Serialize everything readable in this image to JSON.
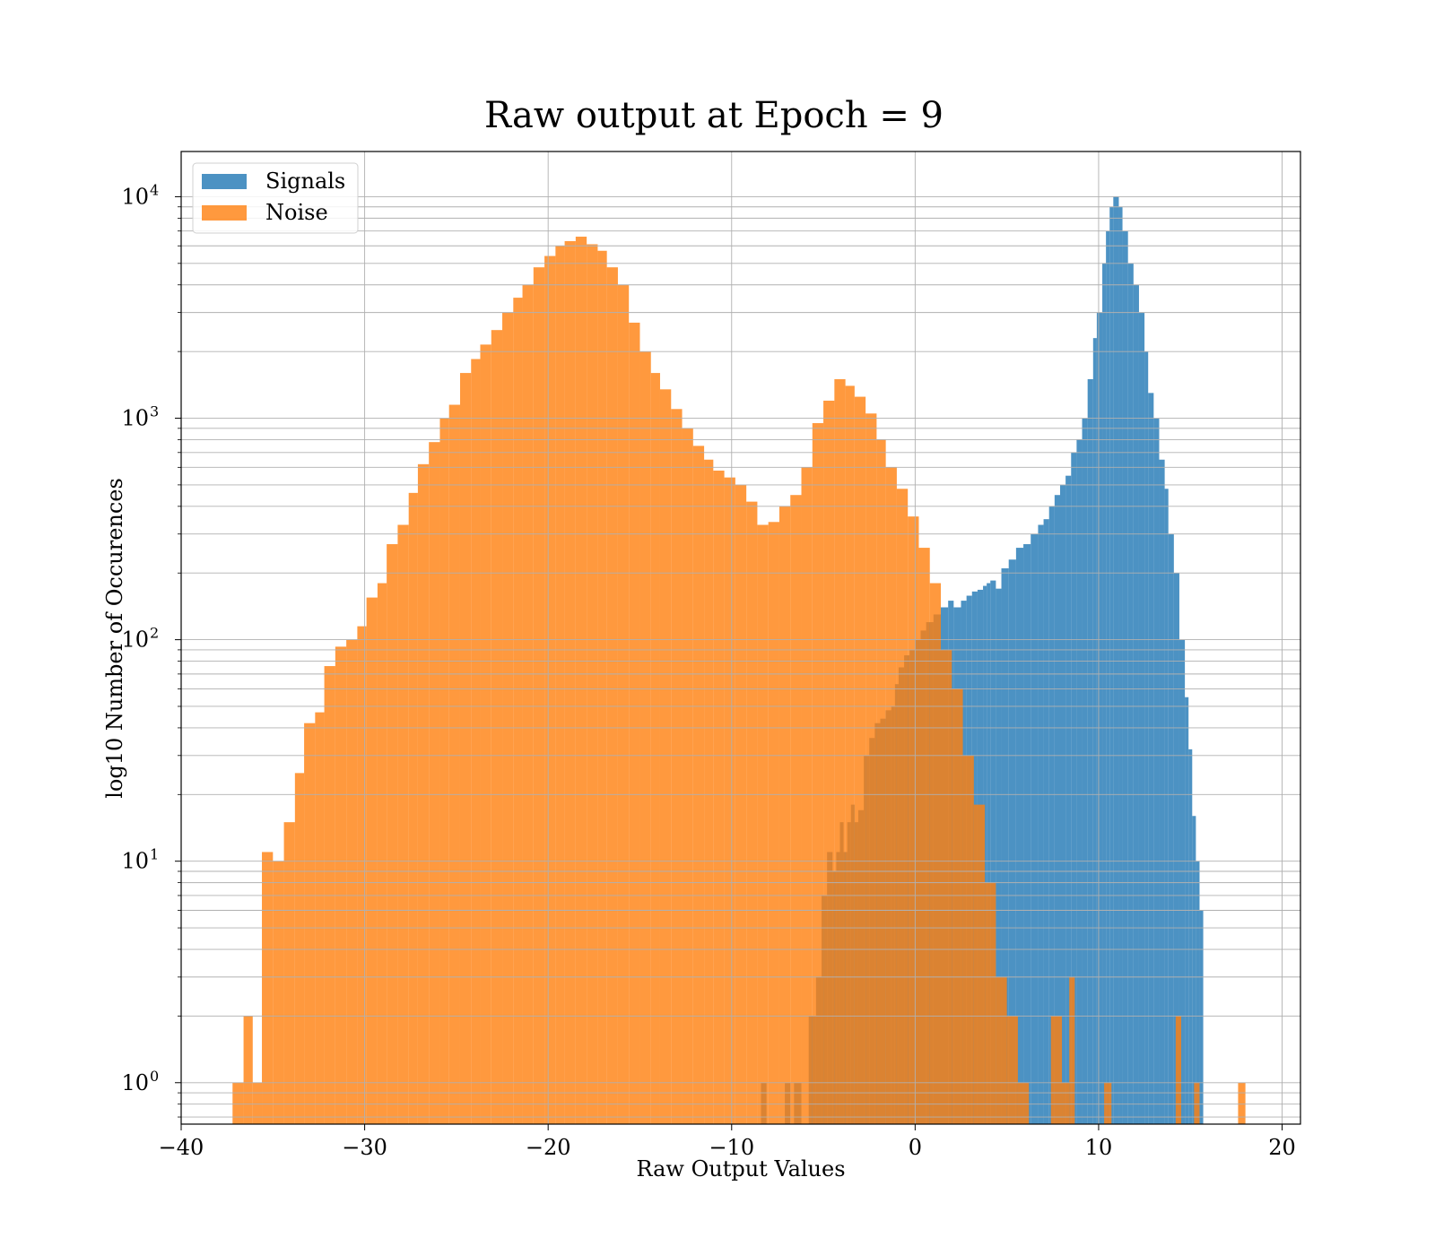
{
  "chart_data": {
    "type": "bar",
    "title": "Raw output at Epoch = 9",
    "xlabel": "Raw Output Values",
    "ylabel": "log10 Number of Occurences",
    "yscale": "log",
    "xlim": [
      -40,
      21
    ],
    "ylim": [
      0.65,
      16000
    ],
    "xticks": [
      -40,
      -30,
      -20,
      -10,
      0,
      10,
      20
    ],
    "xtick_labels": [
      "−40",
      "−30",
      "−20",
      "−10",
      "0",
      "10",
      "20"
    ],
    "ytick_labels": [
      {
        "base": "10",
        "exp": "0",
        "value": 1
      },
      {
        "base": "10",
        "exp": "1",
        "value": 10
      },
      {
        "base": "10",
        "exp": "2",
        "value": 100
      },
      {
        "base": "10",
        "exp": "3",
        "value": 1000
      },
      {
        "base": "10",
        "exp": "4",
        "value": 10000
      }
    ],
    "grid": true,
    "legend": "top-left",
    "series": [
      {
        "name": "Signals",
        "color": "#1f77b4",
        "opacity": 0.8,
        "bins": [
          [
            -8.4,
            -8.1,
            1
          ],
          [
            -7.1,
            -6.8,
            1
          ],
          [
            -6.6,
            -6.2,
            1
          ],
          [
            -5.8,
            -5.4,
            2
          ],
          [
            -5.4,
            -5.1,
            3
          ],
          [
            -5.1,
            -4.8,
            7
          ],
          [
            -4.8,
            -4.5,
            11
          ],
          [
            -4.5,
            -4.3,
            9
          ],
          [
            -4.3,
            -4.1,
            11
          ],
          [
            -4.1,
            -3.9,
            15
          ],
          [
            -3.9,
            -3.7,
            11
          ],
          [
            -3.7,
            -3.5,
            15
          ],
          [
            -3.5,
            -3.3,
            18
          ],
          [
            -3.3,
            -3.1,
            15
          ],
          [
            -3.1,
            -2.8,
            17
          ],
          [
            -2.8,
            -2.5,
            30
          ],
          [
            -2.5,
            -2.2,
            36
          ],
          [
            -2.2,
            -1.9,
            42
          ],
          [
            -1.9,
            -1.6,
            44
          ],
          [
            -1.6,
            -1.3,
            48
          ],
          [
            -1.3,
            -1.1,
            50
          ],
          [
            -1.1,
            -0.9,
            63
          ],
          [
            -0.9,
            -0.6,
            75
          ],
          [
            -0.6,
            -0.3,
            85
          ],
          [
            -0.3,
            0,
            90
          ],
          [
            0,
            0.3,
            100
          ],
          [
            0.3,
            0.6,
            110
          ],
          [
            0.6,
            1.0,
            120
          ],
          [
            1.0,
            1.4,
            130
          ],
          [
            1.4,
            1.8,
            140
          ],
          [
            1.8,
            2.1,
            150
          ],
          [
            2.1,
            2.5,
            140
          ],
          [
            2.5,
            2.8,
            150
          ],
          [
            2.8,
            3.1,
            158
          ],
          [
            3.1,
            3.4,
            165
          ],
          [
            3.4,
            3.7,
            168
          ],
          [
            3.7,
            3.9,
            175
          ],
          [
            3.9,
            4.1,
            180
          ],
          [
            4.1,
            4.4,
            185
          ],
          [
            4.4,
            4.7,
            170
          ],
          [
            4.7,
            5.1,
            210
          ],
          [
            5.1,
            5.5,
            230
          ],
          [
            5.5,
            5.9,
            260
          ],
          [
            5.9,
            6.3,
            270
          ],
          [
            6.3,
            6.7,
            300
          ],
          [
            6.7,
            7.0,
            330
          ],
          [
            7.0,
            7.3,
            350
          ],
          [
            7.3,
            7.6,
            400
          ],
          [
            7.6,
            7.9,
            450
          ],
          [
            7.9,
            8.2,
            500
          ],
          [
            8.2,
            8.5,
            550
          ],
          [
            8.5,
            8.8,
            700
          ],
          [
            8.8,
            9.1,
            800
          ],
          [
            9.1,
            9.4,
            1000
          ],
          [
            9.4,
            9.7,
            1500
          ],
          [
            9.7,
            9.9,
            2300
          ],
          [
            9.9,
            10.2,
            3000
          ],
          [
            10.2,
            10.4,
            5000
          ],
          [
            10.4,
            10.6,
            7000
          ],
          [
            10.6,
            10.8,
            9000
          ],
          [
            10.8,
            11.1,
            10000
          ],
          [
            11.1,
            11.3,
            9000
          ],
          [
            11.3,
            11.6,
            7000
          ],
          [
            11.6,
            11.9,
            5000
          ],
          [
            11.9,
            12.2,
            4000
          ],
          [
            12.2,
            12.5,
            3000
          ],
          [
            12.5,
            12.7,
            2000
          ],
          [
            12.7,
            13.0,
            1300
          ],
          [
            13.0,
            13.3,
            1000
          ],
          [
            13.3,
            13.6,
            650
          ],
          [
            13.6,
            13.8,
            480
          ],
          [
            13.8,
            14.1,
            300
          ],
          [
            14.1,
            14.4,
            200
          ],
          [
            14.4,
            14.7,
            100
          ],
          [
            14.7,
            14.9,
            55
          ],
          [
            14.9,
            15.1,
            32
          ],
          [
            15.1,
            15.3,
            16
          ],
          [
            15.3,
            15.5,
            10
          ],
          [
            15.5,
            15.7,
            6
          ]
        ]
      },
      {
        "name": "Noise",
        "color": "#ff7f0e",
        "opacity": 0.8,
        "bins": [
          [
            -37.2,
            -36.6,
            1
          ],
          [
            -36.6,
            -36.1,
            2
          ],
          [
            -36.1,
            -35.6,
            1
          ],
          [
            -35.6,
            -35.0,
            11
          ],
          [
            -35.0,
            -34.4,
            10
          ],
          [
            -34.4,
            -33.8,
            15
          ],
          [
            -33.8,
            -33.3,
            25
          ],
          [
            -33.3,
            -32.7,
            42
          ],
          [
            -32.7,
            -32.2,
            47
          ],
          [
            -32.2,
            -31.6,
            76
          ],
          [
            -31.6,
            -31.0,
            93
          ],
          [
            -31.0,
            -30.4,
            100
          ],
          [
            -30.4,
            -29.9,
            115
          ],
          [
            -29.9,
            -29.3,
            155
          ],
          [
            -29.3,
            -28.8,
            180
          ],
          [
            -28.8,
            -28.2,
            270
          ],
          [
            -28.2,
            -27.6,
            330
          ],
          [
            -27.6,
            -27.1,
            460
          ],
          [
            -27.1,
            -26.5,
            620
          ],
          [
            -26.5,
            -25.9,
            780
          ],
          [
            -25.9,
            -25.4,
            1000
          ],
          [
            -25.4,
            -24.8,
            1150
          ],
          [
            -24.8,
            -24.2,
            1600
          ],
          [
            -24.2,
            -23.7,
            1850
          ],
          [
            -23.7,
            -23.1,
            2150
          ],
          [
            -23.1,
            -22.5,
            2500
          ],
          [
            -22.5,
            -21.9,
            3000
          ],
          [
            -21.9,
            -21.4,
            3500
          ],
          [
            -21.4,
            -20.8,
            4000
          ],
          [
            -20.8,
            -20.2,
            4800
          ],
          [
            -20.2,
            -19.6,
            5400
          ],
          [
            -19.6,
            -19.1,
            6000
          ],
          [
            -19.1,
            -18.5,
            6300
          ],
          [
            -18.5,
            -17.9,
            6600
          ],
          [
            -17.9,
            -17.3,
            6100
          ],
          [
            -17.3,
            -16.8,
            5700
          ],
          [
            -16.8,
            -16.2,
            4800
          ],
          [
            -16.2,
            -15.6,
            4000
          ],
          [
            -15.6,
            -15.0,
            2700
          ],
          [
            -15.0,
            -14.4,
            2000
          ],
          [
            -14.4,
            -13.9,
            1600
          ],
          [
            -13.9,
            -13.3,
            1350
          ],
          [
            -13.3,
            -12.7,
            1100
          ],
          [
            -12.7,
            -12.1,
            900
          ],
          [
            -12.1,
            -11.5,
            750
          ],
          [
            -11.5,
            -11.0,
            650
          ],
          [
            -11.0,
            -10.4,
            580
          ],
          [
            -10.4,
            -9.8,
            540
          ],
          [
            -9.8,
            -9.2,
            500
          ],
          [
            -9.2,
            -8.6,
            420
          ],
          [
            -8.6,
            -8.0,
            330
          ],
          [
            -8.0,
            -7.4,
            340
          ],
          [
            -7.4,
            -6.8,
            400
          ],
          [
            -6.8,
            -6.2,
            450
          ],
          [
            -6.2,
            -5.6,
            600
          ],
          [
            -5.6,
            -5.0,
            950
          ],
          [
            -5.0,
            -4.4,
            1200
          ],
          [
            -4.4,
            -3.8,
            1500
          ],
          [
            -3.8,
            -3.3,
            1400
          ],
          [
            -3.3,
            -2.7,
            1250
          ],
          [
            -2.7,
            -2.1,
            1050
          ],
          [
            -2.1,
            -1.6,
            800
          ],
          [
            -1.6,
            -1.0,
            600
          ],
          [
            -1.0,
            -0.4,
            480
          ],
          [
            -0.4,
            0.2,
            360
          ],
          [
            0.2,
            0.8,
            260
          ],
          [
            0.8,
            1.4,
            180
          ],
          [
            1.4,
            2.0,
            90
          ],
          [
            2.0,
            2.6,
            60
          ],
          [
            2.6,
            3.2,
            30
          ],
          [
            3.2,
            3.8,
            18
          ],
          [
            3.8,
            4.4,
            8
          ],
          [
            4.4,
            5.0,
            3
          ],
          [
            5.0,
            5.6,
            2
          ],
          [
            5.6,
            6.2,
            1
          ],
          [
            6.2,
            6.8,
            0
          ],
          [
            6.8,
            7.4,
            0
          ],
          [
            7.4,
            8.0,
            2
          ],
          [
            8.0,
            8.4,
            1
          ],
          [
            8.4,
            8.7,
            3
          ],
          [
            10.3,
            10.7,
            1
          ],
          [
            14.2,
            14.5,
            2
          ],
          [
            15.2,
            15.5,
            1
          ],
          [
            17.6,
            18.0,
            1
          ]
        ]
      }
    ]
  }
}
